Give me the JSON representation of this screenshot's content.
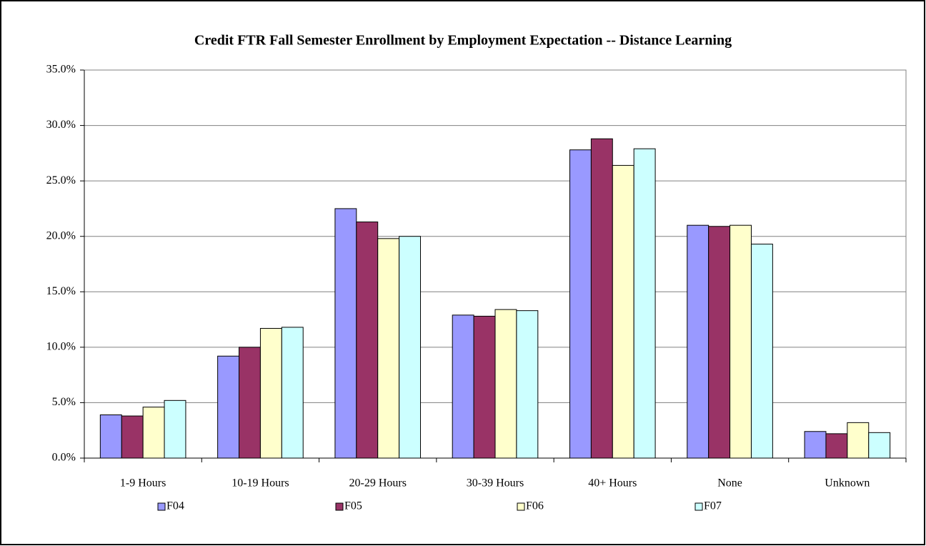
{
  "chart_data": {
    "type": "bar",
    "title": "Credit FTR Fall Semester Enrollment by Employment Expectation -- Distance Learning",
    "categories": [
      "1-9 Hours",
      "10-19 Hours",
      "20-29 Hours",
      "30-39 Hours",
      "40+ Hours",
      "None",
      "Unknown"
    ],
    "series": [
      {
        "name": "F04",
        "color": "#9999ff",
        "values": [
          3.9,
          9.2,
          22.5,
          12.9,
          27.8,
          21.0,
          2.4
        ]
      },
      {
        "name": "F05",
        "color": "#993366",
        "values": [
          3.8,
          10.0,
          21.3,
          12.8,
          28.8,
          20.9,
          2.2
        ]
      },
      {
        "name": "F06",
        "color": "#ffffcc",
        "values": [
          4.6,
          11.7,
          19.8,
          13.4,
          26.4,
          21.0,
          3.2
        ]
      },
      {
        "name": "F07",
        "color": "#ccffff",
        "values": [
          5.2,
          11.8,
          20.0,
          13.3,
          27.9,
          19.3,
          2.3
        ]
      }
    ],
    "ylim": [
      0,
      35
    ],
    "yticks": [
      {
        "value": 0,
        "label": "0.0%"
      },
      {
        "value": 5,
        "label": "5.0%"
      },
      {
        "value": 10,
        "label": "10.0%"
      },
      {
        "value": 15,
        "label": "15.0%"
      },
      {
        "value": 20,
        "label": "20.0%"
      },
      {
        "value": 25,
        "label": "25.0%"
      },
      {
        "value": 30,
        "label": "30.0%"
      },
      {
        "value": 35,
        "label": "35.0%"
      }
    ],
    "grid": true,
    "legend": "bottom"
  }
}
